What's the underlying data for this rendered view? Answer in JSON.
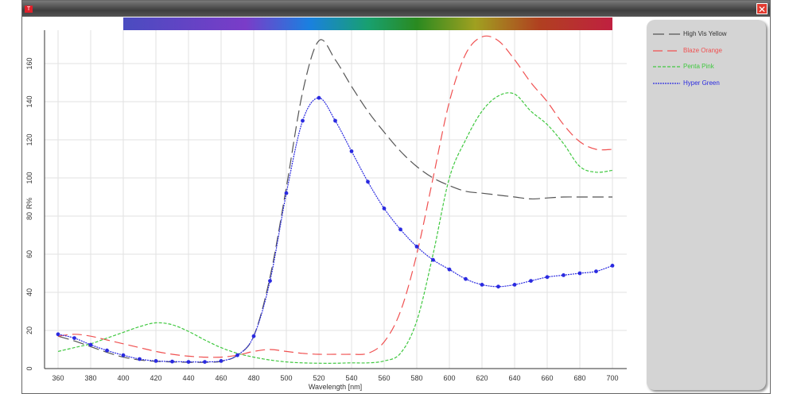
{
  "window": {
    "app_icon": "T",
    "close_icon": "✕"
  },
  "chart_data": {
    "type": "line",
    "xlabel": "Wavelength [nm]",
    "ylabel": "R%",
    "xlim": [
      355,
      705
    ],
    "ylim": [
      0,
      170
    ],
    "xticks": [
      360,
      380,
      400,
      420,
      440,
      460,
      480,
      500,
      520,
      540,
      560,
      580,
      600,
      620,
      640,
      660,
      680,
      700
    ],
    "yticks": [
      0,
      20,
      40,
      60,
      80,
      100,
      120,
      140,
      160
    ],
    "grid": true,
    "legend_placement": "right panel",
    "x": [
      360,
      370,
      380,
      390,
      400,
      410,
      420,
      430,
      440,
      450,
      460,
      470,
      480,
      490,
      500,
      510,
      520,
      530,
      540,
      550,
      560,
      570,
      580,
      590,
      600,
      610,
      620,
      630,
      640,
      650,
      660,
      670,
      680,
      690,
      700
    ],
    "series": [
      {
        "name": "High Vis Yellow",
        "color": "#555555",
        "dash": "14,6",
        "values": [
          17,
          14.5,
          11.5,
          8.5,
          6,
          4.5,
          3.8,
          3.5,
          3.3,
          3.3,
          3.8,
          7,
          17,
          48,
          95,
          145,
          172,
          162,
          148,
          135,
          124,
          114,
          106,
          100,
          96,
          93,
          92,
          91,
          90,
          89,
          89.5,
          90,
          90,
          90,
          90
        ]
      },
      {
        "name": "Blaze Orange",
        "color": "#f05050",
        "dash": "12,6",
        "values": [
          17,
          18,
          17,
          15,
          13,
          11,
          9,
          7.5,
          6.5,
          6,
          6,
          7,
          9,
          10,
          9,
          8,
          7.5,
          7.5,
          7.5,
          8,
          14,
          30,
          60,
          100,
          140,
          165,
          174,
          172,
          162,
          150,
          140,
          128,
          119,
          115,
          115
        ]
      },
      {
        "name": "Penta Pink",
        "color": "#40c840",
        "dash": "4,2",
        "values": [
          9,
          11,
          13,
          16,
          19,
          22,
          24,
          23,
          19.5,
          15,
          11,
          8,
          6,
          4.5,
          3.5,
          3,
          2.8,
          2.8,
          3,
          3,
          4,
          8,
          25,
          60,
          100,
          120,
          135,
          143,
          144,
          135,
          128,
          118,
          106,
          103,
          104
        ]
      },
      {
        "name": "Hyper Green",
        "color": "#2a2ae0",
        "dash": "2,1",
        "markers": true,
        "values": [
          18,
          16,
          12.5,
          9.5,
          7,
          5,
          4,
          3.7,
          3.5,
          3.5,
          4,
          7,
          17,
          46,
          92,
          130,
          142,
          130,
          114,
          98,
          84,
          73,
          64,
          57,
          52,
          47,
          44,
          43,
          44,
          46,
          48,
          49,
          50,
          51,
          54
        ]
      }
    ]
  }
}
